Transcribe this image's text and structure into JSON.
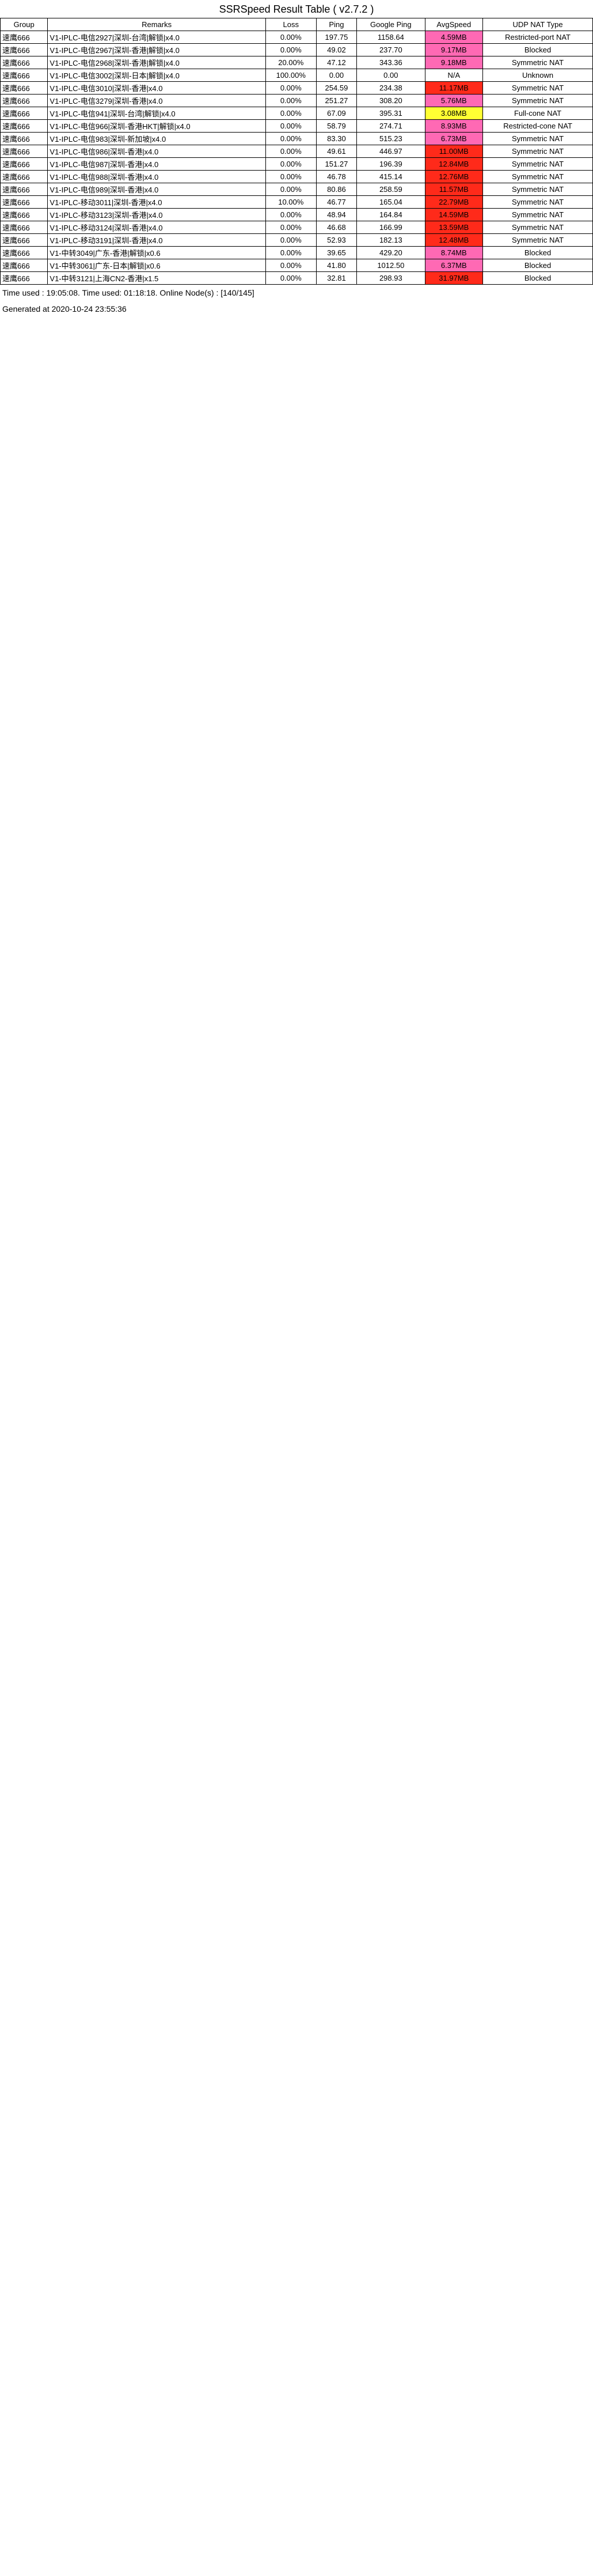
{
  "title": "SSRSpeed Result Table ( v2.7.2 )",
  "columns": [
    "Group",
    "Remarks",
    "Loss",
    "Ping",
    "Google Ping",
    "AvgSpeed",
    "UDP NAT Type"
  ],
  "rows": [
    [
      "速鹰666",
      "V1-IPLC-电信2927|深圳-台湾|解锁|x4.0",
      "0.00%",
      "197.75",
      "1158.64",
      "4.59MB",
      "Restricted-port NAT",
      "pink"
    ],
    [
      "速鹰666",
      "V1-IPLC-电信2967|深圳-香港|解锁|x4.0",
      "0.00%",
      "49.02",
      "237.70",
      "9.17MB",
      "Blocked",
      "pink"
    ],
    [
      "速鹰666",
      "V1-IPLC-电信2968|深圳-香港|解锁|x4.0",
      "20.00%",
      "47.12",
      "343.36",
      "9.18MB",
      "Symmetric NAT",
      "pink"
    ],
    [
      "速鹰666",
      "V1-IPLC-电信3002|深圳-日本|解锁|x4.0",
      "100.00%",
      "0.00",
      "0.00",
      "N/A",
      "Unknown",
      "none"
    ],
    [
      "速鹰666",
      "V1-IPLC-电信3010|深圳-香港|x4.0",
      "0.00%",
      "254.59",
      "234.38",
      "11.17MB",
      "Symmetric NAT",
      "red"
    ],
    [
      "速鹰666",
      "V1-IPLC-电信3279|深圳-香港|x4.0",
      "0.00%",
      "251.27",
      "308.20",
      "5.76MB",
      "Symmetric NAT",
      "pink"
    ],
    [
      "速鹰666",
      "V1-IPLC-电信941|深圳-台湾|解锁|x4.0",
      "0.00%",
      "67.09",
      "395.31",
      "3.08MB",
      "Full-cone NAT",
      "yellow"
    ],
    [
      "速鹰666",
      "V1-IPLC-电信966|深圳-香港HKT|解锁|x4.0",
      "0.00%",
      "58.79",
      "274.71",
      "8.93MB",
      "Restricted-cone NAT",
      "pink"
    ],
    [
      "速鹰666",
      "V1-IPLC-电信983|深圳-新加坡|x4.0",
      "0.00%",
      "83.30",
      "515.23",
      "6.73MB",
      "Symmetric NAT",
      "pink"
    ],
    [
      "速鹰666",
      "V1-IPLC-电信986|深圳-香港|x4.0",
      "0.00%",
      "49.61",
      "446.97",
      "11.00MB",
      "Symmetric NAT",
      "red"
    ],
    [
      "速鹰666",
      "V1-IPLC-电信987|深圳-香港|x4.0",
      "0.00%",
      "151.27",
      "196.39",
      "12.84MB",
      "Symmetric NAT",
      "red"
    ],
    [
      "速鹰666",
      "V1-IPLC-电信988|深圳-香港|x4.0",
      "0.00%",
      "46.78",
      "415.14",
      "12.76MB",
      "Symmetric NAT",
      "red"
    ],
    [
      "速鹰666",
      "V1-IPLC-电信989|深圳-香港|x4.0",
      "0.00%",
      "80.86",
      "258.59",
      "11.57MB",
      "Symmetric NAT",
      "red"
    ],
    [
      "速鹰666",
      "V1-IPLC-移动3011|深圳-香港|x4.0",
      "10.00%",
      "46.77",
      "165.04",
      "22.79MB",
      "Symmetric NAT",
      "red"
    ],
    [
      "速鹰666",
      "V1-IPLC-移动3123|深圳-香港|x4.0",
      "0.00%",
      "48.94",
      "164.84",
      "14.59MB",
      "Symmetric NAT",
      "red"
    ],
    [
      "速鹰666",
      "V1-IPLC-移动3124|深圳-香港|x4.0",
      "0.00%",
      "46.68",
      "166.99",
      "13.59MB",
      "Symmetric NAT",
      "red"
    ],
    [
      "速鹰666",
      "V1-IPLC-移动3191|深圳-香港|x4.0",
      "0.00%",
      "52.93",
      "182.13",
      "12.48MB",
      "Symmetric NAT",
      "red"
    ],
    [
      "速鹰666",
      "V1-中转3049|广东-香港|解锁|x0.6",
      "0.00%",
      "39.65",
      "429.20",
      "8.74MB",
      "Blocked",
      "pink"
    ],
    [
      "速鹰666",
      "V1-中转3061|广东-日本|解锁|x0.6",
      "0.00%",
      "41.80",
      "1012.50",
      "6.37MB",
      "Blocked",
      "pink"
    ],
    [
      "速鹰666",
      "V1-中转3121|上海CN2-香港|x1.5",
      "0.00%",
      "32.81",
      "298.93",
      "31.97MB",
      "Blocked",
      "red"
    ]
  ],
  "footer": "Generated at 2020-10-24 23:55:36",
  "time_used": "Time used : 19:05:08. Time used: 01:18:18. Online Node(s) : [140/145]"
}
